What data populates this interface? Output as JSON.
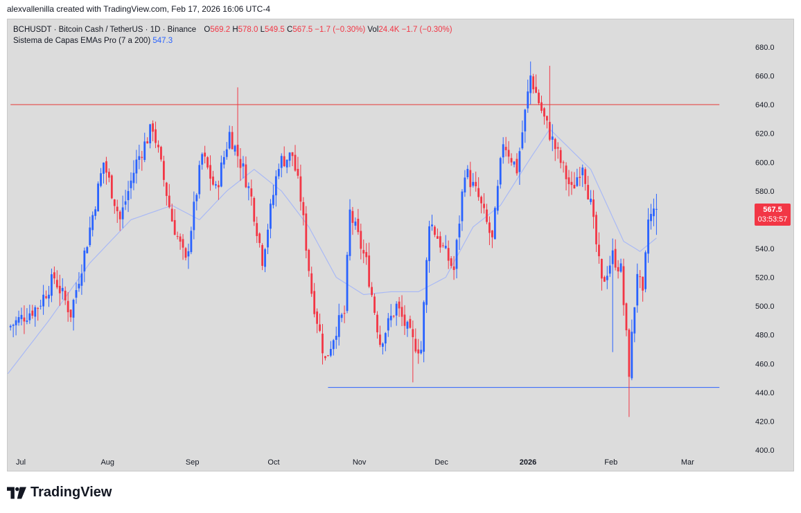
{
  "caption": "alexvallenilla created with TradingView.com, Feb 17, 2026 16:06 UTC-4",
  "legend": {
    "symbol": "BCHUSDT · Bitcoin Cash / TetherUS · 1D · Binance",
    "o_label": "O",
    "o_value": "569.2",
    "h_label": "H",
    "h_value": "578.0",
    "l_label": "L",
    "l_value": "549.5",
    "c_label": "C",
    "c_value": "567.5",
    "change": "−1.7 (−0.30%)",
    "vol_label": "Vol",
    "vol_value": "24.4K",
    "vol_change": "−1.7 (−0.30%)",
    "indicator_name": "Sistema de Capas EMAs Pro (7 a 200)",
    "indicator_value": "547.3"
  },
  "price_tag": {
    "price": "567.5",
    "countdown": "03:53:57"
  },
  "brand": {
    "name": "TradingView"
  },
  "colors": {
    "up": "#2962ff",
    "down": "#f23645",
    "ema": "#a9b9f5",
    "resistance": "#e53935",
    "support": "#2962ff"
  },
  "chart_data": {
    "type": "candlestick",
    "title": "BCHUSDT · Bitcoin Cash / TetherUS · 1D · Binance",
    "ylim": [
      400,
      690
    ],
    "y_ticks": [
      "400.0",
      "420.0",
      "440.0",
      "460.0",
      "480.0",
      "500.0",
      "520.0",
      "540.0",
      "560.0",
      "580.0",
      "600.0",
      "620.0",
      "640.0",
      "660.0",
      "680.0"
    ],
    "x_ticks": [
      {
        "label": "Jul",
        "bold": false
      },
      {
        "label": "Aug",
        "bold": false
      },
      {
        "label": "Sep",
        "bold": false
      },
      {
        "label": "Oct",
        "bold": false
      },
      {
        "label": "Nov",
        "bold": false
      },
      {
        "label": "Dec",
        "bold": false
      },
      {
        "label": "2026",
        "bold": true
      },
      {
        "label": "Feb",
        "bold": false
      },
      {
        "label": "Mar",
        "bold": false
      }
    ],
    "x_tick_days": [
      0,
      31,
      62,
      92,
      123,
      153,
      184,
      215,
      243
    ],
    "resistance": {
      "price": 640,
      "from_day": -4,
      "to_day": 255
    },
    "support": {
      "price": 443.5,
      "from_day": 112,
      "to_day": 255
    },
    "last_close": 567.5,
    "anchors": [
      {
        "day": -5,
        "p": 485
      },
      {
        "day": 6,
        "p": 500
      },
      {
        "day": 12,
        "p": 520
      },
      {
        "day": 18,
        "p": 495
      },
      {
        "day": 24,
        "p": 545
      },
      {
        "day": 30,
        "p": 600
      },
      {
        "day": 36,
        "p": 560
      },
      {
        "day": 42,
        "p": 600
      },
      {
        "day": 48,
        "p": 625
      },
      {
        "day": 55,
        "p": 560
      },
      {
        "day": 60,
        "p": 530
      },
      {
        "day": 66,
        "p": 605
      },
      {
        "day": 71,
        "p": 580
      },
      {
        "day": 76,
        "p": 620
      },
      {
        "day": 81,
        "p": 595
      },
      {
        "day": 84,
        "p": 575
      },
      {
        "day": 88,
        "p": 533
      },
      {
        "day": 94,
        "p": 600
      },
      {
        "day": 99,
        "p": 605
      },
      {
        "day": 102,
        "p": 575
      },
      {
        "day": 106,
        "p": 510
      },
      {
        "day": 111,
        "p": 462
      },
      {
        "day": 115,
        "p": 485
      },
      {
        "day": 118,
        "p": 495
      },
      {
        "day": 120,
        "p": 565
      },
      {
        "day": 126,
        "p": 530
      },
      {
        "day": 131,
        "p": 475
      },
      {
        "day": 137,
        "p": 500
      },
      {
        "day": 143,
        "p": 475
      },
      {
        "day": 146,
        "p": 470
      },
      {
        "day": 149,
        "p": 560
      },
      {
        "day": 154,
        "p": 540
      },
      {
        "day": 158,
        "p": 525
      },
      {
        "day": 162,
        "p": 595
      },
      {
        "day": 167,
        "p": 575
      },
      {
        "day": 172,
        "p": 545
      },
      {
        "day": 176,
        "p": 615
      },
      {
        "day": 181,
        "p": 595
      },
      {
        "day": 186,
        "p": 660
      },
      {
        "day": 191,
        "p": 630
      },
      {
        "day": 196,
        "p": 605
      },
      {
        "day": 201,
        "p": 580
      },
      {
        "day": 205,
        "p": 600
      },
      {
        "day": 208,
        "p": 570
      },
      {
        "day": 212,
        "p": 515
      },
      {
        "day": 216,
        "p": 535
      },
      {
        "day": 219,
        "p": 525
      },
      {
        "day": 222,
        "p": 455
      },
      {
        "day": 225,
        "p": 525
      },
      {
        "day": 227,
        "p": 505
      },
      {
        "day": 229,
        "p": 560
      },
      {
        "day": 232,
        "p": 567.5
      }
    ],
    "ema_anchors": [
      {
        "day": -5,
        "p": 453
      },
      {
        "day": 10,
        "p": 490
      },
      {
        "day": 25,
        "p": 530
      },
      {
        "day": 40,
        "p": 560
      },
      {
        "day": 55,
        "p": 570
      },
      {
        "day": 65,
        "p": 560
      },
      {
        "day": 75,
        "p": 580
      },
      {
        "day": 85,
        "p": 595
      },
      {
        "day": 95,
        "p": 580
      },
      {
        "day": 105,
        "p": 555
      },
      {
        "day": 115,
        "p": 520
      },
      {
        "day": 125,
        "p": 508
      },
      {
        "day": 135,
        "p": 510
      },
      {
        "day": 145,
        "p": 510
      },
      {
        "day": 155,
        "p": 520
      },
      {
        "day": 165,
        "p": 555
      },
      {
        "day": 175,
        "p": 570
      },
      {
        "day": 185,
        "p": 600
      },
      {
        "day": 193,
        "p": 623
      },
      {
        "day": 200,
        "p": 610
      },
      {
        "day": 208,
        "p": 595
      },
      {
        "day": 214,
        "p": 570
      },
      {
        "day": 220,
        "p": 545
      },
      {
        "day": 226,
        "p": 538
      },
      {
        "day": 232,
        "p": 547.3
      }
    ]
  }
}
